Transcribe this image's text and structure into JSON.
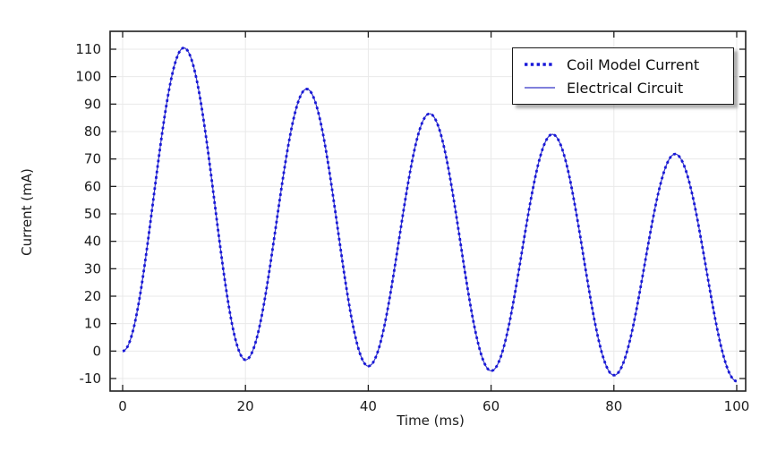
{
  "figure": {
    "title": "",
    "x_axis": {
      "label": "Time (ms)"
    },
    "y_axis": {
      "label": "Current (mA)"
    },
    "legend": {
      "position": "top-right",
      "entries": [
        {
          "label": "Coil Model Current",
          "style": "dotted",
          "color": "#1818d8"
        },
        {
          "label": "Electrical Circuit",
          "style": "solid",
          "color": "#3535c8"
        }
      ]
    }
  },
  "chart_data": {
    "type": "line",
    "title": "",
    "xlabel": "Time (ms)",
    "ylabel": "Current (mA)",
    "xlim": [
      0,
      100
    ],
    "ylim": [
      -10,
      110
    ],
    "x_ticks": [
      0,
      20,
      40,
      60,
      80,
      100
    ],
    "y_ticks": [
      -10,
      0,
      10,
      20,
      30,
      40,
      50,
      60,
      70,
      80,
      90,
      100,
      110
    ],
    "grid": true,
    "grid_color": "#e9e9e9",
    "frame_color": "#1f1f1f",
    "legend_position": "top-right",
    "series": [
      {
        "name": "Coil Model Current",
        "style": "dotted",
        "color": "#1818d8",
        "line_width": 2.8,
        "waveform": "shared"
      },
      {
        "name": "Electrical Circuit",
        "style": "solid",
        "color": "#3535c8",
        "line_width": 1.2,
        "waveform": "shared"
      }
    ],
    "waveform_keypoints": {
      "description": "Both series coincide: damped periodic pulses, period 20 ms, sin^2-shaped peaks with drifting baseline",
      "period_ms": 20,
      "valleys_t": [
        0,
        20,
        40,
        60,
        80,
        100
      ],
      "valleys_mA": [
        0,
        -3.2,
        -5.5,
        -7.2,
        -8.8,
        -11
      ],
      "peaks_t": [
        10,
        30,
        50,
        70,
        90
      ],
      "peaks_mA": [
        110.5,
        95.5,
        86.5,
        79,
        71.8
      ]
    }
  }
}
